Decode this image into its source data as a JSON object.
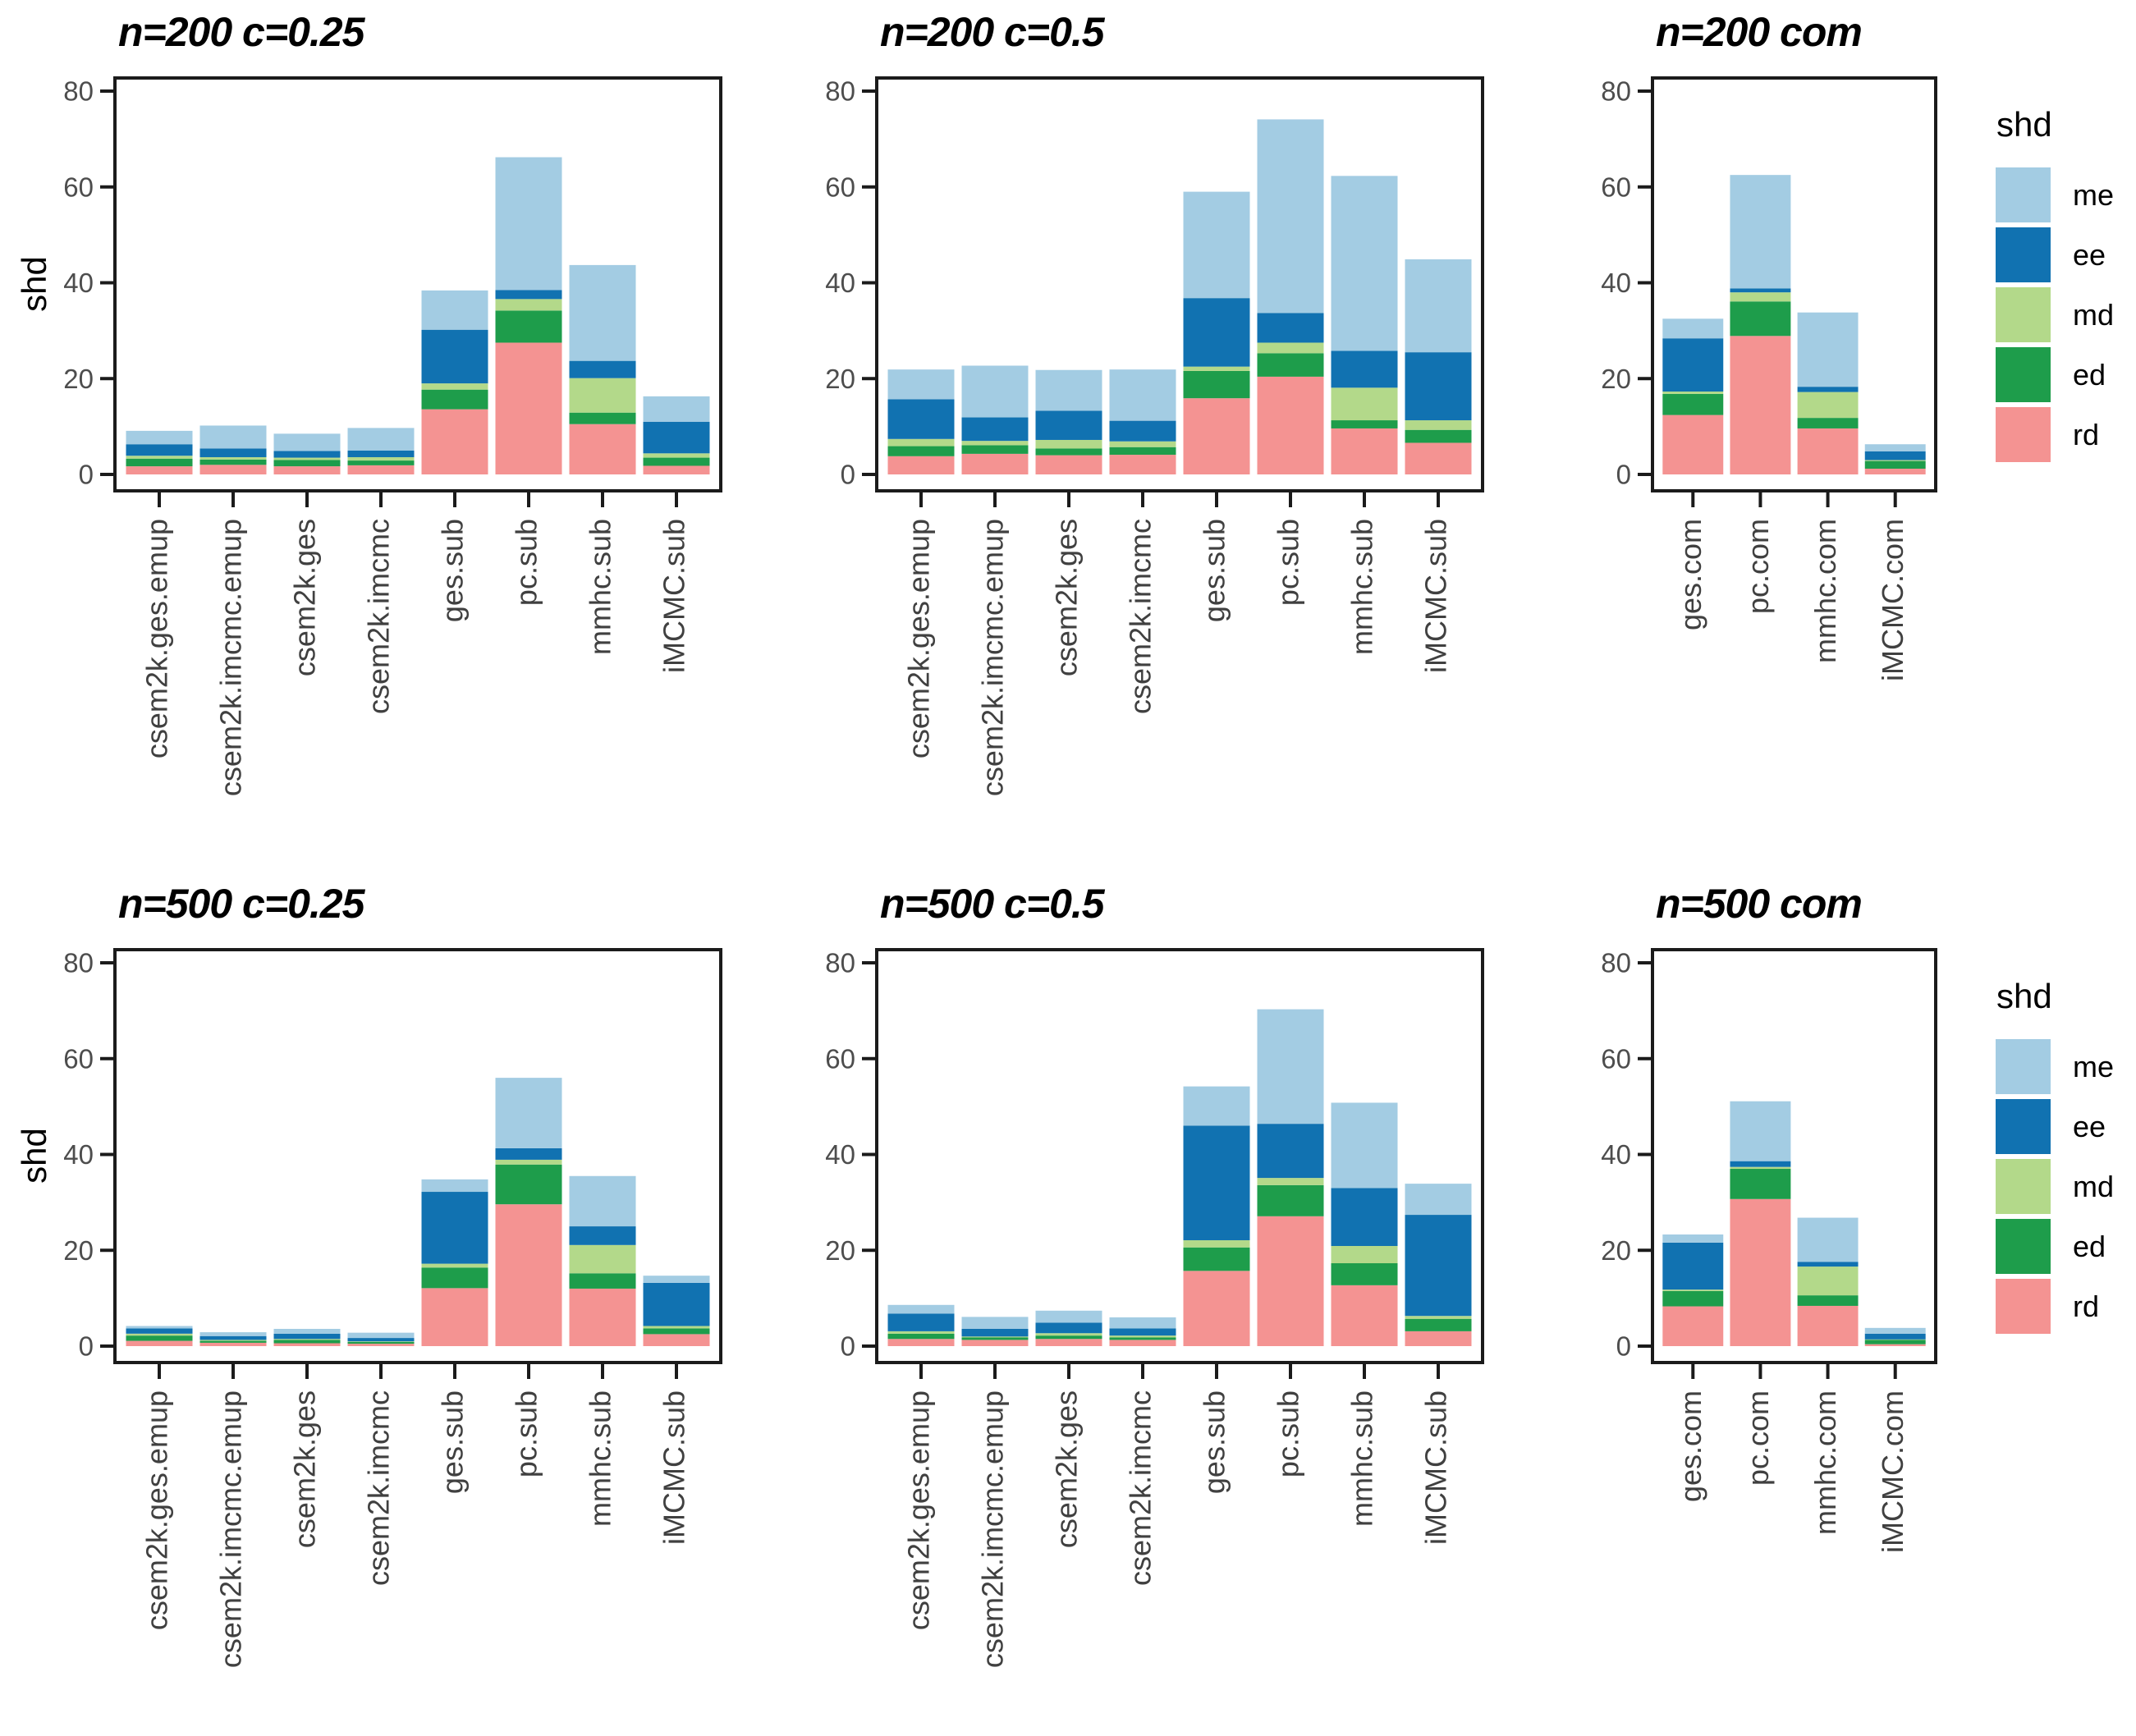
{
  "figure": {
    "background": "#ffffff",
    "border_color": "#1b1b1b",
    "tick_color": "#1b1b1b",
    "tick_label_color": "#4d4d4d",
    "category_label_color": "#404040"
  },
  "axes": {
    "y_label": "shd",
    "y_ticks": [
      0,
      20,
      40,
      60,
      80
    ],
    "ylim": [
      0,
      80
    ]
  },
  "legend": {
    "title": "shd",
    "items": [
      {
        "label": "me",
        "color": "#A3CCE3"
      },
      {
        "label": "ee",
        "color": "#1172B1"
      },
      {
        "label": "md",
        "color": "#B3D98A"
      },
      {
        "label": "ed",
        "color": "#1E9D4B"
      },
      {
        "label": "rd",
        "color": "#F49392"
      }
    ]
  },
  "chart_data": [
    {
      "type": "bar",
      "stacked": true,
      "title": "n=200 c=0.25",
      "ylabel": "shd",
      "ylim": [
        0,
        80
      ],
      "grid": false,
      "legend_position": "right",
      "categories": [
        "csem2k.ges.emup",
        "csem2k.imcmc.emup",
        "csem2k.ges",
        "csem2k.imcmc",
        "ges.sub",
        "pc.sub",
        "mmhc.sub",
        "iMCMC.sub"
      ],
      "series": [
        {
          "name": "rd",
          "values": [
            1.7,
            2.0,
            1.7,
            1.9,
            13.6,
            27.5,
            10.5,
            1.8
          ]
        },
        {
          "name": "ed",
          "values": [
            1.6,
            1.1,
            1.3,
            1.0,
            4.1,
            6.7,
            2.4,
            1.7
          ]
        },
        {
          "name": "md",
          "values": [
            0.6,
            0.5,
            0.5,
            0.7,
            1.3,
            2.4,
            7.2,
            0.9
          ]
        },
        {
          "name": "ee",
          "values": [
            2.4,
            1.8,
            1.4,
            1.4,
            11.2,
            1.9,
            3.6,
            6.6
          ]
        },
        {
          "name": "me",
          "values": [
            2.8,
            4.8,
            3.6,
            4.7,
            8.2,
            27.7,
            20.0,
            5.3
          ]
        }
      ]
    },
    {
      "type": "bar",
      "stacked": true,
      "title": "n=200 c=0.5",
      "ylabel": "shd",
      "ylim": [
        0,
        80
      ],
      "grid": false,
      "legend_position": "right",
      "categories": [
        "csem2k.ges.emup",
        "csem2k.imcmc.emup",
        "csem2k.ges",
        "csem2k.imcmc",
        "ges.sub",
        "pc.sub",
        "mmhc.sub",
        "iMCMC.sub"
      ],
      "series": [
        {
          "name": "rd",
          "values": [
            3.8,
            4.3,
            4.0,
            4.1,
            15.9,
            20.4,
            9.6,
            6.6
          ]
        },
        {
          "name": "ed",
          "values": [
            2.1,
            1.8,
            1.4,
            1.6,
            5.7,
            4.9,
            1.7,
            2.7
          ]
        },
        {
          "name": "md",
          "values": [
            1.5,
            0.9,
            1.8,
            1.2,
            0.9,
            2.2,
            6.8,
            2.0
          ]
        },
        {
          "name": "ee",
          "values": [
            8.3,
            4.9,
            6.1,
            4.3,
            14.3,
            6.2,
            7.7,
            14.2
          ]
        },
        {
          "name": "me",
          "values": [
            6.2,
            10.8,
            8.5,
            10.7,
            22.2,
            40.4,
            36.5,
            19.4
          ]
        }
      ]
    },
    {
      "type": "bar",
      "stacked": true,
      "title": "n=200 com",
      "ylabel": "shd",
      "ylim": [
        0,
        80
      ],
      "grid": false,
      "legend_position": "right",
      "categories": [
        "ges.com",
        "pc.com",
        "mmhc.com",
        "iMCMC.com"
      ],
      "series": [
        {
          "name": "rd",
          "values": [
            12.4,
            28.9,
            9.6,
            1.2
          ]
        },
        {
          "name": "ed",
          "values": [
            4.4,
            7.2,
            2.2,
            1.6
          ]
        },
        {
          "name": "md",
          "values": [
            0.5,
            1.9,
            5.4,
            0.2
          ]
        },
        {
          "name": "ee",
          "values": [
            11.1,
            0.8,
            1.1,
            1.8
          ]
        },
        {
          "name": "me",
          "values": [
            4.1,
            23.7,
            15.5,
            1.5
          ]
        }
      ]
    },
    {
      "type": "bar",
      "stacked": true,
      "title": "n=500 c=0.25",
      "ylabel": "shd",
      "ylim": [
        0,
        80
      ],
      "grid": false,
      "legend_position": "right",
      "categories": [
        "csem2k.ges.emup",
        "csem2k.imcmc.emup",
        "csem2k.ges",
        "csem2k.imcmc",
        "ges.sub",
        "pc.sub",
        "mmhc.sub",
        "iMCMC.sub"
      ],
      "series": [
        {
          "name": "rd",
          "values": [
            1.1,
            0.7,
            0.6,
            0.5,
            12.1,
            29.6,
            12.0,
            2.5
          ]
        },
        {
          "name": "ed",
          "values": [
            1.1,
            0.4,
            0.7,
            0.4,
            4.3,
            8.3,
            3.2,
            1.2
          ]
        },
        {
          "name": "md",
          "values": [
            0.4,
            0.2,
            0.2,
            0.1,
            0.8,
            1.0,
            5.9,
            0.5
          ]
        },
        {
          "name": "ee",
          "values": [
            1.1,
            0.8,
            1.1,
            0.7,
            15.0,
            2.4,
            3.9,
            9.0
          ]
        },
        {
          "name": "me",
          "values": [
            0.5,
            0.8,
            1.0,
            1.1,
            2.6,
            14.7,
            10.5,
            1.5
          ]
        }
      ]
    },
    {
      "type": "bar",
      "stacked": true,
      "title": "n=500 c=0.5",
      "ylabel": "shd",
      "ylim": [
        0,
        80
      ],
      "grid": false,
      "legend_position": "right",
      "categories": [
        "csem2k.ges.emup",
        "csem2k.imcmc.emup",
        "csem2k.ges",
        "csem2k.imcmc",
        "ges.sub",
        "pc.sub",
        "mmhc.sub",
        "iMCMC.sub"
      ],
      "series": [
        {
          "name": "rd",
          "values": [
            1.5,
            1.3,
            1.5,
            1.3,
            15.7,
            27.1,
            12.7,
            3.1
          ]
        },
        {
          "name": "ed",
          "values": [
            1.1,
            0.5,
            0.7,
            0.5,
            4.9,
            6.5,
            4.6,
            2.6
          ]
        },
        {
          "name": "md",
          "values": [
            0.5,
            0.2,
            0.5,
            0.4,
            1.5,
            1.5,
            3.6,
            0.6
          ]
        },
        {
          "name": "ee",
          "values": [
            3.7,
            1.6,
            2.2,
            1.5,
            23.9,
            11.3,
            12.1,
            21.1
          ]
        },
        {
          "name": "me",
          "values": [
            1.8,
            2.5,
            2.5,
            2.3,
            8.2,
            23.9,
            17.8,
            6.5
          ]
        }
      ]
    },
    {
      "type": "bar",
      "stacked": true,
      "title": "n=500 com",
      "ylabel": "shd",
      "ylim": [
        0,
        80
      ],
      "grid": false,
      "legend_position": "right",
      "categories": [
        "ges.com",
        "pc.com",
        "mmhc.com",
        "iMCMC.com"
      ],
      "series": [
        {
          "name": "rd",
          "values": [
            8.3,
            30.7,
            8.4,
            0.4
          ]
        },
        {
          "name": "ed",
          "values": [
            3.2,
            6.3,
            2.2,
            0.9
          ]
        },
        {
          "name": "md",
          "values": [
            0.3,
            0.4,
            6.0,
            0.1
          ]
        },
        {
          "name": "ee",
          "values": [
            9.8,
            1.2,
            1.0,
            1.2
          ]
        },
        {
          "name": "me",
          "values": [
            1.7,
            12.5,
            9.2,
            1.2
          ]
        }
      ]
    }
  ]
}
